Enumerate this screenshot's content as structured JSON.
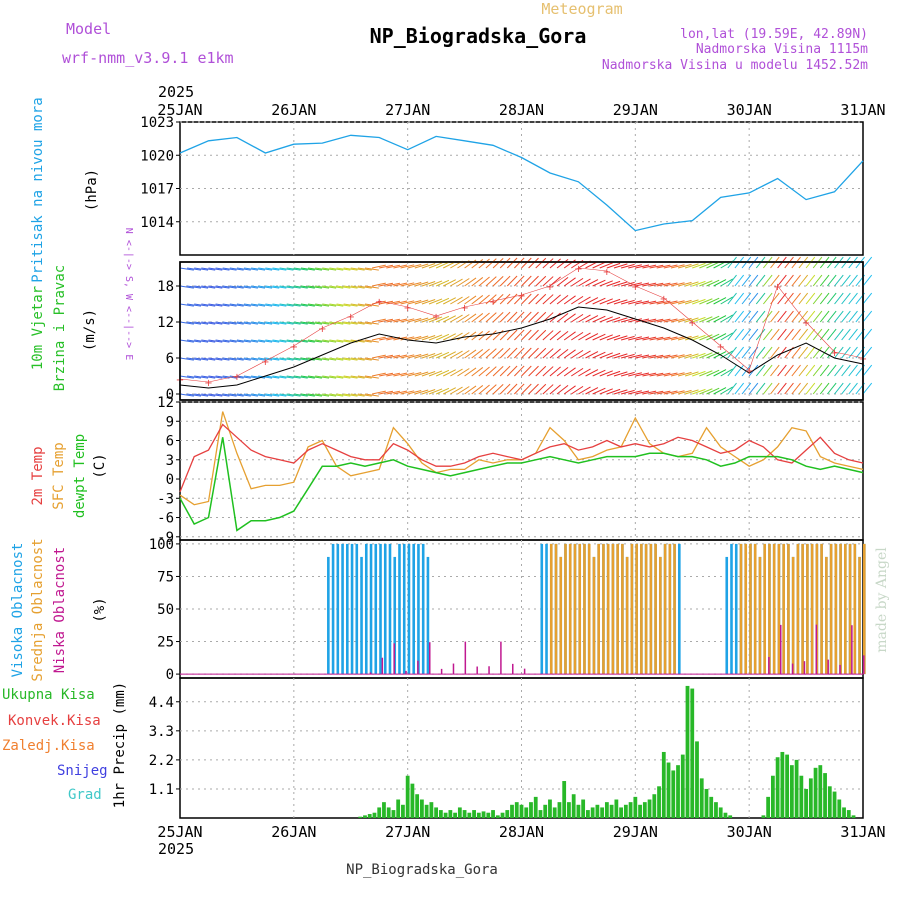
{
  "header": {
    "model_label": "Model",
    "model_name": "wrf-nmm_v3.9.1 e1km",
    "title": "NP_Biogradska_Gora",
    "subtitle": "Meteogram",
    "coords": "lon,lat (19.59E, 42.89N)",
    "elevation": "Nadmorska Visina 1115m",
    "model_elevation": "Nadmorska Visina u modelu 1452.52m",
    "footer": "NP_Biogradska_Gora",
    "watermark": "made by Angel"
  },
  "colors": {
    "pressure": "#1fa3e6",
    "temp2m": "#e64040",
    "sfc": "#e6a030",
    "dewpt": "#20c020",
    "low_cloud": "#c01890",
    "mid_cloud": "#e6a030",
    "high_cloud": "#1fa3e6",
    "precip": "#28b828",
    "purple": "#b050d8"
  },
  "chart_data": [
    {
      "type": "line",
      "title": "",
      "ylabel": "Pritisak na nivou mora",
      "yunit": "(hPa)",
      "ylim": [
        1011,
        1023
      ],
      "yticks": [
        1014,
        1017,
        1020,
        1023
      ],
      "x_labels_top": [
        "25JAN",
        "26JAN",
        "27JAN",
        "28JAN",
        "29JAN",
        "30JAN",
        "31JAN"
      ],
      "year_label": "2025",
      "x_hours": [
        0,
        6,
        12,
        18,
        24,
        30,
        36,
        42,
        48,
        54,
        60,
        66,
        72,
        78,
        84,
        90,
        96,
        102,
        108,
        114,
        120,
        126,
        132,
        138,
        144
      ],
      "series": [
        {
          "values": [
            1020.2,
            1021.3,
            1021.6,
            1020.2,
            1021.0,
            1021.1,
            1021.8,
            1021.6,
            1020.5,
            1021.7,
            1021.3,
            1020.9,
            1019.8,
            1018.4,
            1017.6,
            1015.5,
            1013.2,
            1013.8,
            1014.1,
            1016.2,
            1016.6,
            1017.9,
            1016.0,
            1016.7,
            1019.5
          ]
        }
      ]
    },
    {
      "type": "line",
      "ylabel": "10m Vjetar",
      "ylabel2": "Brzina i Pravac",
      "yunit": "(m/s)",
      "ylim": [
        -1,
        22
      ],
      "yticks": [
        0,
        6,
        12,
        18
      ],
      "compass": "N <-|-> S, W <--|--> E",
      "x_hours": [
        0,
        6,
        12,
        18,
        24,
        30,
        36,
        42,
        48,
        54,
        60,
        66,
        72,
        78,
        84,
        90,
        96,
        102,
        108,
        114,
        120,
        126,
        132,
        138,
        144
      ],
      "series": [
        {
          "name": "speed",
          "values": [
            1.5,
            1.0,
            1.5,
            3.0,
            4.5,
            6.5,
            8.5,
            10.0,
            9.0,
            8.5,
            9.5,
            10.0,
            11.0,
            12.5,
            14.5,
            14.0,
            12.5,
            11.0,
            9.0,
            6.5,
            3.5,
            6.5,
            8.5,
            6.0,
            5.0
          ]
        },
        {
          "name": "gust",
          "values": [
            2.5,
            2.0,
            3.0,
            5.5,
            8.0,
            11.0,
            13.0,
            15.5,
            14.5,
            13.0,
            14.5,
            15.5,
            16.5,
            18.0,
            21.0,
            20.5,
            18.0,
            16.0,
            12.0,
            8.0,
            4.0,
            18.0,
            12.0,
            7.0,
            6.0
          ]
        }
      ]
    },
    {
      "type": "line",
      "ylabel": "2m Temp",
      "ylabel2": "SFC Temp",
      "ylabel3": "dewpt Temp",
      "yunit": "(C)",
      "ylim": [
        -9.5,
        12
      ],
      "yticks": [
        -9,
        -6,
        -3,
        0,
        3,
        6,
        9,
        12
      ],
      "x_hours": [
        0,
        3,
        6,
        9,
        12,
        15,
        18,
        21,
        24,
        27,
        30,
        33,
        36,
        39,
        42,
        45,
        48,
        51,
        54,
        57,
        60,
        63,
        66,
        69,
        72,
        75,
        78,
        81,
        84,
        87,
        90,
        93,
        96,
        99,
        102,
        105,
        108,
        111,
        114,
        117,
        120,
        123,
        126,
        129,
        132,
        135,
        138,
        141,
        144
      ],
      "series": [
        {
          "name": "2m Temp",
          "values": [
            -2,
            3.5,
            4.5,
            8.5,
            6.5,
            4.5,
            3.5,
            3.0,
            2.5,
            4.5,
            5.5,
            4.5,
            3.5,
            3.0,
            3.0,
            5.5,
            4.5,
            3.0,
            2.0,
            2.0,
            2.5,
            3.5,
            4.0,
            3.5,
            3.0,
            4.0,
            5.0,
            5.5,
            4.5,
            5.0,
            6.0,
            5.0,
            5.5,
            5.0,
            5.5,
            6.5,
            6.0,
            5.0,
            4.0,
            4.5,
            6.0,
            5.0,
            3.0,
            2.5,
            4.5,
            6.5,
            4.0,
            3.0,
            2.5
          ]
        },
        {
          "name": "SFC Temp",
          "values": [
            -2.5,
            -4,
            -3.5,
            10.5,
            4.0,
            -1.5,
            -1.0,
            -1.0,
            -0.5,
            5.0,
            6.0,
            2.0,
            0.5,
            1.0,
            1.5,
            8.0,
            5.5,
            2.5,
            1.0,
            1.5,
            1.5,
            3.0,
            2.5,
            3.0,
            3.0,
            4.0,
            8.0,
            6.0,
            3.0,
            3.5,
            4.5,
            5.0,
            9.5,
            5.5,
            4.0,
            3.5,
            4.0,
            8.0,
            5.0,
            3.5,
            2.0,
            3.0,
            5.0,
            8.0,
            7.5,
            3.5,
            2.5,
            2.0,
            1.5
          ]
        },
        {
          "name": "dewpt Temp",
          "values": [
            -3,
            -7,
            -6,
            6.5,
            -8,
            -6.5,
            -6.5,
            -6.0,
            -5.0,
            -1.5,
            2.0,
            2.0,
            2.5,
            2.0,
            2.5,
            3.0,
            2.0,
            1.5,
            1.0,
            0.5,
            1.0,
            1.5,
            2.0,
            2.5,
            2.5,
            3.0,
            3.5,
            3.0,
            2.5,
            3.0,
            3.5,
            3.5,
            3.5,
            4.0,
            4.0,
            3.5,
            3.5,
            3.0,
            2.0,
            2.5,
            3.5,
            3.5,
            3.5,
            3.0,
            2.0,
            1.5,
            2.0,
            1.5,
            1.0
          ]
        }
      ]
    },
    {
      "type": "bar",
      "ylabel": "Visoka Oblacnost",
      "ylabel2": "Srednja Oblacnost",
      "ylabel3": "Niska Oblacnost",
      "yunit": "(%)",
      "ylim": [
        -3,
        103
      ],
      "yticks": [
        0,
        25,
        50,
        75,
        100
      ],
      "segments": [
        {
          "name": "high",
          "from_hour": 31,
          "to_hour": 52,
          "value": 100
        },
        {
          "name": "high",
          "from_hour": 76,
          "to_hour": 105,
          "value": 100
        },
        {
          "name": "mid",
          "from_hour": 78,
          "to_hour": 104,
          "value": 100
        },
        {
          "name": "high",
          "from_hour": 115,
          "to_hour": 144,
          "value": 100
        },
        {
          "name": "mid",
          "from_hour": 118,
          "to_hour": 144,
          "value": 100
        },
        {
          "name": "low",
          "from_hour": 40,
          "to_hour": 74,
          "value": 25
        },
        {
          "name": "low",
          "from_hour": 124,
          "to_hour": 144,
          "value": 38
        }
      ]
    },
    {
      "type": "bar",
      "ylabel": "1hr Precip (mm)",
      "legend": [
        "Ukupna Kisa",
        "Konvek.Kisa",
        "Zaledj.Kisa",
        "Snijeg",
        "Grad"
      ],
      "legend_colors": [
        "#28b828",
        "#e64040",
        "#f08030",
        "#4040e0",
        "#40c8c8"
      ],
      "ylim": [
        0,
        5.3
      ],
      "yticks": [
        1.1,
        2.2,
        3.3,
        4.4
      ],
      "x_labels_bottom": [
        "25JAN",
        "26JAN",
        "27JAN",
        "28JAN",
        "29JAN",
        "30JAN",
        "31JAN"
      ],
      "year_label": "2025",
      "bars_hour_start": 36,
      "values": [
        0.0,
        0.0,
        0.05,
        0.1,
        0.15,
        0.2,
        0.4,
        0.6,
        0.4,
        0.3,
        0.7,
        0.5,
        1.6,
        1.3,
        0.9,
        0.7,
        0.5,
        0.6,
        0.4,
        0.3,
        0.2,
        0.3,
        0.2,
        0.4,
        0.3,
        0.2,
        0.3,
        0.2,
        0.25,
        0.2,
        0.3,
        0.1,
        0.2,
        0.3,
        0.5,
        0.6,
        0.5,
        0.4,
        0.6,
        0.8,
        0.3,
        0.5,
        0.7,
        0.4,
        0.6,
        1.4,
        0.6,
        0.9,
        0.5,
        0.7,
        0.3,
        0.4,
        0.5,
        0.4,
        0.6,
        0.5,
        0.7,
        0.4,
        0.5,
        0.6,
        0.8,
        0.5,
        0.6,
        0.7,
        0.9,
        1.2,
        2.5,
        2.1,
        1.8,
        2.0,
        2.4,
        5.0,
        4.9,
        2.9,
        1.5,
        1.1,
        0.8,
        0.6,
        0.4,
        0.2,
        0.1,
        0.0,
        0.0,
        0.0,
        0.0,
        0.0,
        0.0,
        0.1,
        0.8,
        1.6,
        2.3,
        2.5,
        2.4,
        2.0,
        2.2,
        1.6,
        1.1,
        1.5,
        1.9,
        2.0,
        1.7,
        1.2,
        1.0,
        0.7,
        0.4,
        0.3,
        0.1,
        0.0,
        0.0,
        0.0
      ]
    }
  ]
}
